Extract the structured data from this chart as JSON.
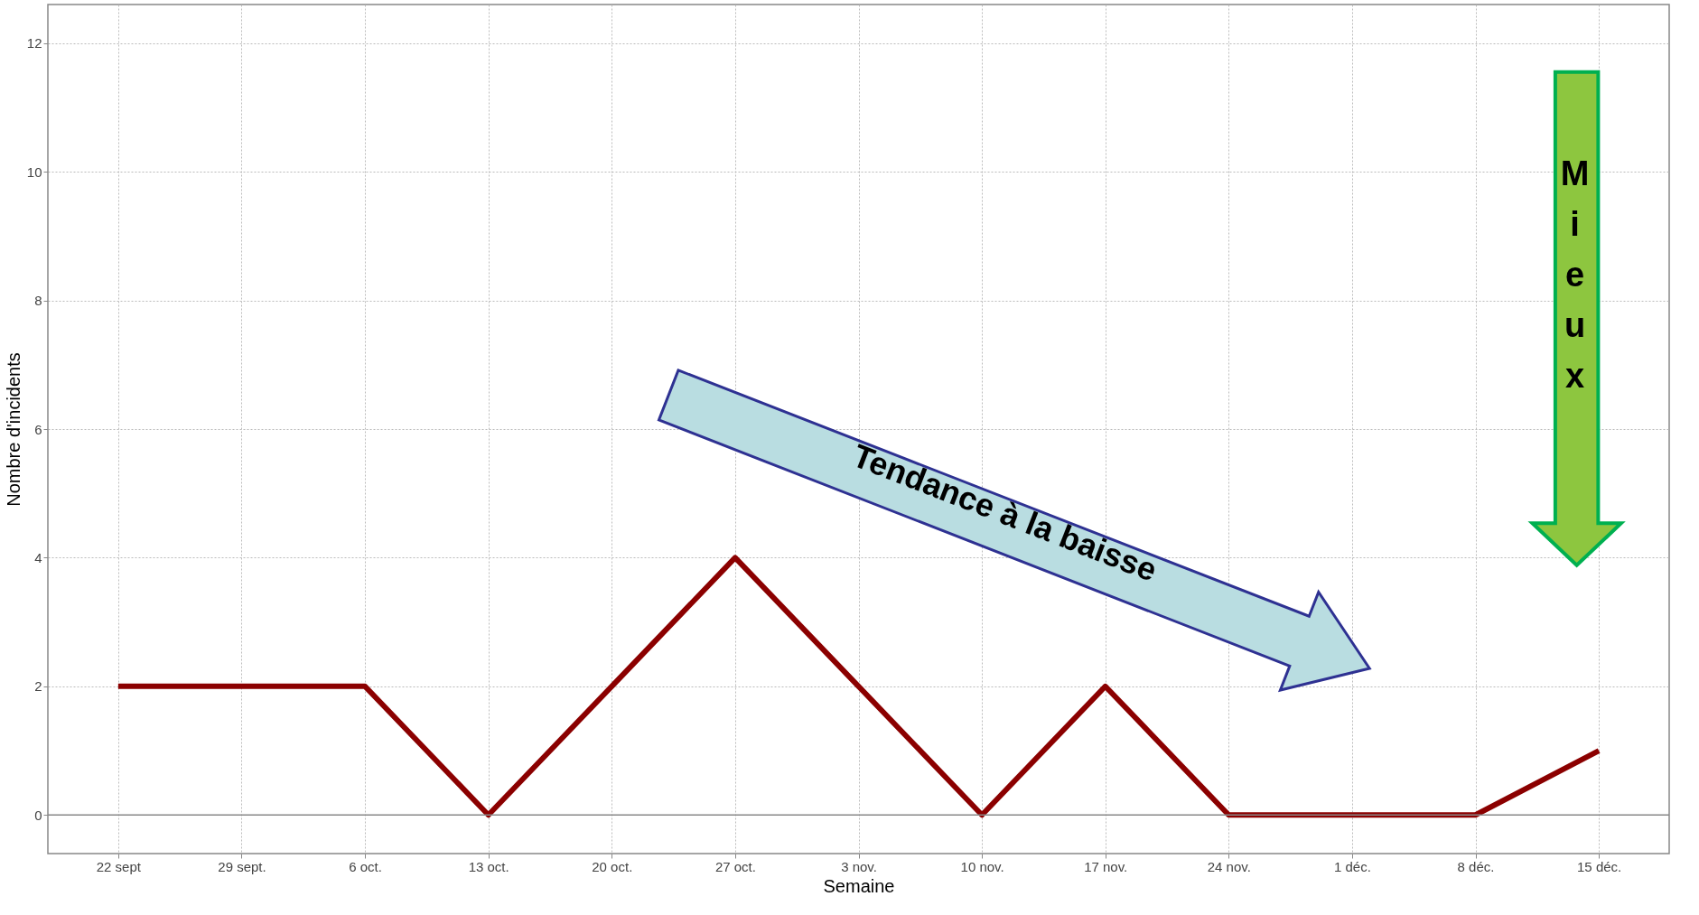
{
  "chart_data": {
    "type": "line",
    "xlabel": "Semaine",
    "ylabel": "Nombre d'incidents",
    "categories": [
      "22 sept",
      "29 sept.",
      "6 oct.",
      "13 oct.",
      "20 oct.",
      "27 oct.",
      "3 nov.",
      "10 nov.",
      "17 nov.",
      "24 nov.",
      "1 déc.",
      "8 déc.",
      "15 déc."
    ],
    "series": [
      {
        "color": "#8b0000",
        "values": [
          2,
          2,
          2,
          0,
          2,
          4,
          2,
          0,
          2,
          0,
          0,
          0,
          1
        ]
      }
    ],
    "ylim": [
      -0.6,
      12.6
    ],
    "yticks": [
      0,
      2,
      4,
      6,
      8,
      10,
      12
    ],
    "grid": true,
    "line_style": "solid",
    "ref_lines": [
      {
        "axis": "y",
        "value": 0,
        "color": "#888888"
      }
    ],
    "annotations": [
      "Tendance à la baisse",
      "Mieux"
    ]
  }
}
